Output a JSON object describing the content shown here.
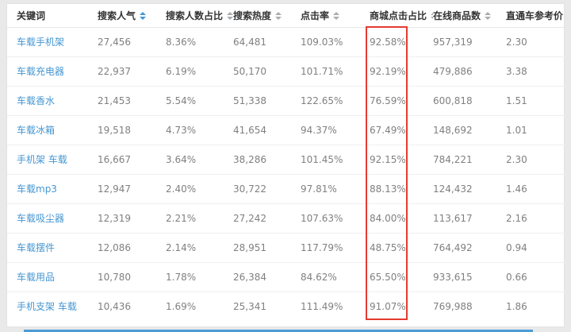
{
  "colors": {
    "page_bg": "#e9e9e9",
    "card_bg": "#ffffff",
    "keyword_link": "#4596d2",
    "header_text": "#333333",
    "cell_text": "#808080",
    "highlight_box": "#e53b30",
    "scrollbar": "#4b9bd5"
  },
  "table": {
    "columns": [
      {
        "label": "关键词",
        "name": "keyword",
        "sortable": false,
        "active": false
      },
      {
        "label": "搜索人气",
        "name": "search-popularity",
        "sortable": true,
        "active": true
      },
      {
        "label": "搜索人数占比",
        "name": "search-people-ratio",
        "sortable": true,
        "active": false
      },
      {
        "label": "搜索热度",
        "name": "search-heat",
        "sortable": true,
        "active": false
      },
      {
        "label": "点击率",
        "name": "click-rate",
        "sortable": true,
        "active": false
      },
      {
        "label": "商城点击占比",
        "name": "mall-click-ratio",
        "sortable": true,
        "active": false,
        "highlighted": true
      },
      {
        "label": "在线商品数",
        "name": "online-products",
        "sortable": true,
        "active": false
      },
      {
        "label": "直通车参考价",
        "name": "ztc-reference-price",
        "sortable": true,
        "active": false
      }
    ],
    "rows": [
      [
        "车载手机架",
        "27,456",
        "8.36%",
        "64,481",
        "109.03%",
        "92.58%",
        "957,319",
        "2.30"
      ],
      [
        "车载充电器",
        "22,937",
        "6.19%",
        "50,170",
        "101.71%",
        "92.19%",
        "479,886",
        "3.38"
      ],
      [
        "车载香水",
        "21,453",
        "5.54%",
        "51,338",
        "122.65%",
        "76.59%",
        "600,818",
        "1.51"
      ],
      [
        "车载冰箱",
        "19,518",
        "4.73%",
        "41,654",
        "94.37%",
        "67.49%",
        "148,692",
        "1.01"
      ],
      [
        "手机架 车载",
        "16,667",
        "3.64%",
        "38,286",
        "101.45%",
        "92.15%",
        "784,221",
        "2.30"
      ],
      [
        "车载mp3",
        "12,947",
        "2.40%",
        "30,722",
        "97.81%",
        "88.13%",
        "124,432",
        "1.46"
      ],
      [
        "车载吸尘器",
        "12,319",
        "2.21%",
        "27,242",
        "107.63%",
        "84.00%",
        "113,617",
        "2.16"
      ],
      [
        "车载摆件",
        "12,086",
        "2.14%",
        "28,951",
        "117.79%",
        "48.75%",
        "764,492",
        "0.94"
      ],
      [
        "车载用品",
        "10,780",
        "1.78%",
        "26,384",
        "84.62%",
        "65.50%",
        "933,615",
        "0.66"
      ],
      [
        "手机支架 车载",
        "10,436",
        "1.69%",
        "25,341",
        "111.49%",
        "91.07%",
        "769,988",
        "1.86"
      ]
    ]
  }
}
